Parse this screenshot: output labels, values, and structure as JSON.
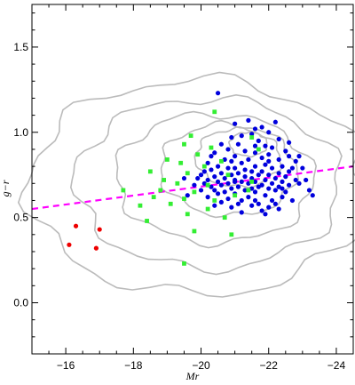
{
  "chart_data": {
    "type": "scatter",
    "title": "",
    "xlabel": "Mr",
    "ylabel": "g−r",
    "xlim": [
      -15,
      -24.5
    ],
    "ylim": [
      -0.3,
      1.75
    ],
    "x_reversed": true,
    "grid": false,
    "legend": "none",
    "x_ticks": [
      -16,
      -18,
      -20,
      -22,
      -24
    ],
    "y_ticks": [
      0.0,
      0.5,
      1.0,
      1.5
    ],
    "x_tick_labels": [
      "−16",
      "−18",
      "−20",
      "−22",
      "−24"
    ],
    "y_tick_labels": [
      "0.0",
      "0.5",
      "1.0",
      "1.5"
    ],
    "divider_line": {
      "x": [
        -15,
        -24.5
      ],
      "y": [
        0.55,
        0.8
      ],
      "color": "#ff00ff",
      "style": "dashed"
    },
    "contours": {
      "color": "#bbbbbb",
      "levels": [
        {
          "cx": -19.9,
          "cy": 0.68,
          "rx": 5.0,
          "ry": 0.63,
          "angle": 18
        },
        {
          "cx": -20.2,
          "cy": 0.7,
          "rx": 3.9,
          "ry": 0.5,
          "angle": 18
        },
        {
          "cx": -20.4,
          "cy": 0.73,
          "rx": 2.9,
          "ry": 0.38,
          "angle": 16
        },
        {
          "cx": -20.8,
          "cy": 0.78,
          "rx": 2.0,
          "ry": 0.27,
          "angle": 14
        },
        {
          "cx": -21.1,
          "cy": 0.85,
          "rx": 1.25,
          "ry": 0.17,
          "angle": 12
        },
        {
          "cx": -21.4,
          "cy": 0.93,
          "rx": 0.55,
          "ry": 0.07,
          "angle": 10
        }
      ]
    },
    "series": [
      {
        "color": "#0000dd",
        "marker": "circle",
        "points": [
          [
            -20.5,
            1.23
          ],
          [
            -21.0,
            1.05
          ],
          [
            -21.4,
            1.07
          ],
          [
            -22.2,
            1.06
          ],
          [
            -21.8,
            1.03
          ],
          [
            -22.0,
            1.0
          ],
          [
            -21.5,
            0.99
          ],
          [
            -21.2,
            0.98
          ],
          [
            -20.9,
            0.97
          ],
          [
            -21.7,
            0.95
          ],
          [
            -22.3,
            0.96
          ],
          [
            -20.6,
            0.93
          ],
          [
            -21.1,
            0.93
          ],
          [
            -21.9,
            0.92
          ],
          [
            -22.1,
            0.91
          ],
          [
            -20.8,
            0.9
          ],
          [
            -21.3,
            0.89
          ],
          [
            -22.5,
            0.89
          ],
          [
            -20.4,
            0.88
          ],
          [
            -21.6,
            0.88
          ],
          [
            -22.0,
            0.87
          ],
          [
            -20.3,
            0.86
          ],
          [
            -21.0,
            0.86
          ],
          [
            -22.6,
            0.86
          ],
          [
            -21.8,
            0.85
          ],
          [
            -20.7,
            0.84
          ],
          [
            -21.4,
            0.84
          ],
          [
            -22.3,
            0.84
          ],
          [
            -20.9,
            0.83
          ],
          [
            -22.8,
            0.83
          ],
          [
            -20.2,
            0.82
          ],
          [
            -21.2,
            0.82
          ],
          [
            -21.9,
            0.81
          ],
          [
            -20.5,
            0.8
          ],
          [
            -21.6,
            0.8
          ],
          [
            -22.4,
            0.8
          ],
          [
            -20.8,
            0.79
          ],
          [
            -21.0,
            0.79
          ],
          [
            -22.1,
            0.79
          ],
          [
            -23.0,
            0.79
          ],
          [
            -20.3,
            0.78
          ],
          [
            -21.5,
            0.77
          ],
          [
            -21.8,
            0.77
          ],
          [
            -22.6,
            0.77
          ],
          [
            -20.6,
            0.76
          ],
          [
            -21.1,
            0.76
          ],
          [
            -22.3,
            0.76
          ],
          [
            -20.0,
            0.75
          ],
          [
            -20.9,
            0.75
          ],
          [
            -21.7,
            0.75
          ],
          [
            -22.0,
            0.75
          ],
          [
            -20.4,
            0.74
          ],
          [
            -21.3,
            0.74
          ],
          [
            -22.5,
            0.74
          ],
          [
            -19.9,
            0.73
          ],
          [
            -20.7,
            0.73
          ],
          [
            -21.5,
            0.73
          ],
          [
            -22.2,
            0.73
          ],
          [
            -20.2,
            0.72
          ],
          [
            -21.0,
            0.72
          ],
          [
            -21.9,
            0.72
          ],
          [
            -22.8,
            0.72
          ],
          [
            -20.5,
            0.71
          ],
          [
            -21.2,
            0.71
          ],
          [
            -21.6,
            0.71
          ],
          [
            -22.4,
            0.71
          ],
          [
            -20.1,
            0.7
          ],
          [
            -20.8,
            0.7
          ],
          [
            -21.4,
            0.7
          ],
          [
            -22.1,
            0.7
          ],
          [
            -20.6,
            0.69
          ],
          [
            -21.8,
            0.69
          ],
          [
            -22.6,
            0.69
          ],
          [
            -20.3,
            0.68
          ],
          [
            -21.1,
            0.68
          ],
          [
            -21.7,
            0.68
          ],
          [
            -22.3,
            0.68
          ],
          [
            -20.9,
            0.67
          ],
          [
            -21.5,
            0.67
          ],
          [
            -22.0,
            0.67
          ],
          [
            -20.4,
            0.66
          ],
          [
            -21.3,
            0.66
          ],
          [
            -22.2,
            0.66
          ],
          [
            -20.7,
            0.65
          ],
          [
            -21.6,
            0.65
          ],
          [
            -22.5,
            0.65
          ],
          [
            -20.5,
            0.64
          ],
          [
            -21.0,
            0.64
          ],
          [
            -21.9,
            0.63
          ],
          [
            -20.2,
            0.62
          ],
          [
            -21.4,
            0.62
          ],
          [
            -22.4,
            0.62
          ],
          [
            -20.8,
            0.61
          ],
          [
            -21.2,
            0.6
          ],
          [
            -22.1,
            0.6
          ],
          [
            -20.6,
            0.59
          ],
          [
            -21.7,
            0.58
          ],
          [
            -21.5,
            0.57
          ],
          [
            -22.0,
            0.56
          ],
          [
            -21.8,
            0.54
          ],
          [
            -21.2,
            0.53
          ],
          [
            -21.9,
            0.52
          ],
          [
            -22.3,
            0.55
          ],
          [
            -21.1,
            0.58
          ],
          [
            -22.7,
            0.6
          ],
          [
            -23.3,
            0.63
          ],
          [
            -22.9,
            0.7
          ],
          [
            -20.0,
            0.66
          ],
          [
            -19.8,
            0.69
          ],
          [
            -21.6,
            0.6
          ],
          [
            -20.9,
            0.56
          ],
          [
            -22.2,
            0.58
          ],
          [
            -23.2,
            0.66
          ],
          [
            -22.7,
            0.79
          ],
          [
            -22.9,
            0.86
          ],
          [
            -20.1,
            0.77
          ],
          [
            -19.6,
            0.63
          ],
          [
            -22.0,
            0.83
          ],
          [
            -21.3,
            0.78
          ],
          [
            -20.4,
            0.57
          ],
          [
            -21.6,
            0.92
          ],
          [
            -23.1,
            0.72
          ],
          [
            -22.6,
            0.94
          ],
          [
            -19.5,
            0.73
          ],
          [
            -22.4,
            0.67
          ],
          [
            -21.0,
            0.71
          ],
          [
            -21.6,
            1.02
          ]
        ]
      },
      {
        "color": "#33ee33",
        "marker": "square",
        "points": [
          [
            -20.4,
            1.12
          ],
          [
            -19.7,
            0.98
          ],
          [
            -21.5,
            0.97
          ],
          [
            -19.5,
            0.93
          ],
          [
            -20.3,
            0.91
          ],
          [
            -21.7,
            0.9
          ],
          [
            -19.9,
            0.87
          ],
          [
            -19.0,
            0.84
          ],
          [
            -20.6,
            0.83
          ],
          [
            -19.4,
            0.82
          ],
          [
            -20.1,
            0.8
          ],
          [
            -18.5,
            0.77
          ],
          [
            -19.6,
            0.76
          ],
          [
            -20.8,
            0.75
          ],
          [
            -18.9,
            0.72
          ],
          [
            -19.3,
            0.7
          ],
          [
            -20.2,
            0.69
          ],
          [
            -17.7,
            0.66
          ],
          [
            -18.8,
            0.66
          ],
          [
            -19.8,
            0.65
          ],
          [
            -21.4,
            0.66
          ],
          [
            -18.6,
            0.62
          ],
          [
            -19.5,
            0.61
          ],
          [
            -20.4,
            0.6
          ],
          [
            -19.1,
            0.58
          ],
          [
            -18.2,
            0.57
          ],
          [
            -20.2,
            0.55
          ],
          [
            -19.6,
            0.52
          ],
          [
            -18.4,
            0.48
          ],
          [
            -20.7,
            0.5
          ],
          [
            -19.8,
            0.42
          ],
          [
            -20.9,
            0.4
          ],
          [
            -19.5,
            0.23
          ],
          [
            -21.5,
            0.71
          ],
          [
            -21.0,
            0.63
          ]
        ]
      },
      {
        "color": "#ee0000",
        "marker": "circle",
        "points": [
          [
            -16.3,
            0.45
          ],
          [
            -17.0,
            0.43
          ],
          [
            -16.1,
            0.34
          ],
          [
            -16.9,
            0.32
          ]
        ]
      }
    ]
  }
}
